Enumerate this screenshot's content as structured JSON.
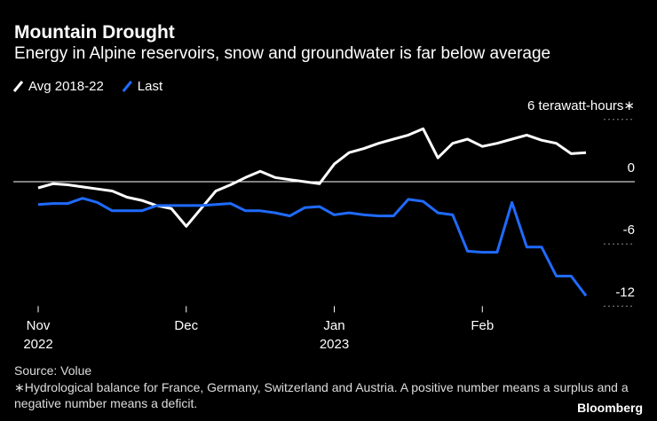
{
  "chart_data": {
    "type": "line",
    "title": "Mountain Drought",
    "subtitle": "Energy in Alpine reservoirs, snow and groundwater is far below average",
    "categories": [
      "Nov 2022",
      null,
      null,
      null,
      null,
      null,
      null,
      null,
      null,
      null,
      "Dec",
      null,
      null,
      null,
      null,
      null,
      null,
      null,
      null,
      null,
      "Jan 2023",
      null,
      null,
      null,
      null,
      null,
      null,
      null,
      null,
      null,
      "Feb",
      null,
      null,
      null,
      null,
      null,
      null,
      null
    ],
    "series": [
      {
        "name": "Avg 2018-22",
        "color": "#ffffff",
        "values": [
          -0.6,
          -0.2,
          -0.3,
          -0.5,
          -0.7,
          -0.9,
          -1.5,
          -1.8,
          -2.3,
          -2.6,
          -4.3,
          -2.6,
          -0.9,
          -0.3,
          0.4,
          1.0,
          0.4,
          0.2,
          0,
          -0.2,
          1.7,
          2.8,
          3.2,
          3.7,
          4.1,
          4.5,
          5.1,
          2.3,
          3.7,
          4.1,
          3.4,
          3.7,
          4.1,
          4.5,
          4.0,
          3.7,
          2.7,
          2.8
        ]
      },
      {
        "name": "Last",
        "color": "#1f6bff",
        "values": [
          -2.2,
          -2.1,
          -2.1,
          -1.6,
          -2.0,
          -2.8,
          -2.8,
          -2.8,
          -2.3,
          -2.3,
          -2.3,
          -2.3,
          -2.2,
          -2.1,
          -2.8,
          -2.8,
          -3.0,
          -3.3,
          -2.5,
          -2.4,
          -3.2,
          -3.0,
          -3.2,
          -3.3,
          -3.3,
          -1.7,
          -1.9,
          -3.0,
          -3.2,
          -6.7,
          -6.8,
          -6.8,
          -2.0,
          -6.3,
          -6.3,
          -9.1,
          -9.1,
          -11.0
        ]
      }
    ],
    "ylim": [
      -12,
      6
    ],
    "yticks": [
      {
        "value": 6,
        "label": "6 terawatt-hours∗"
      },
      0,
      -6,
      -12
    ],
    "source": "Source: Volue",
    "note": "∗Hydrological balance for France, Germany, Switzerland and Austria. A positive number means a surplus and a negative number means a deficit.",
    "logo": "Bloomberg"
  }
}
